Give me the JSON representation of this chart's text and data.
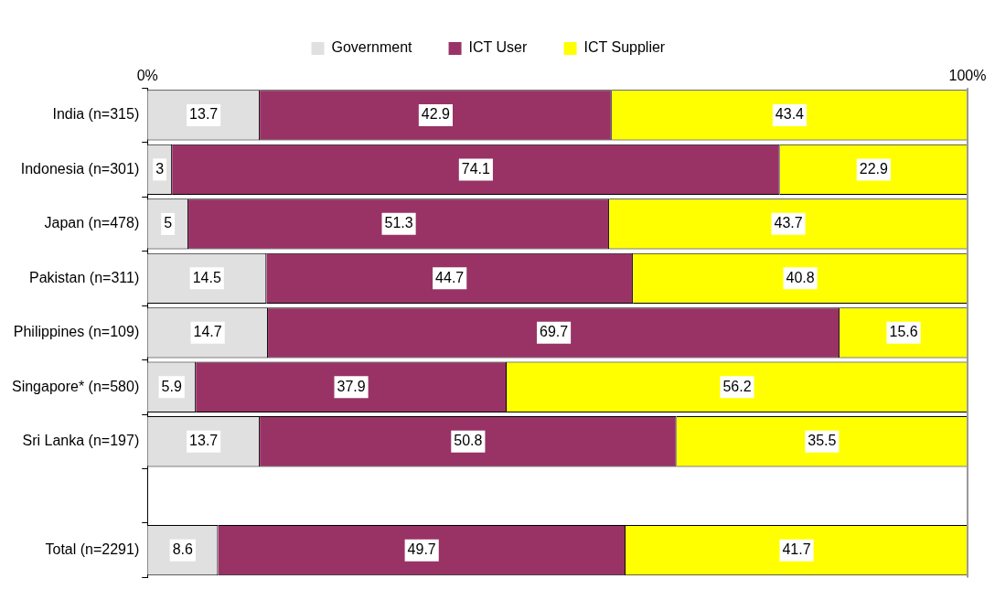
{
  "chart_data": {
    "type": "bar",
    "orientation": "horizontal",
    "stacked": true,
    "data_labels": true,
    "legend": "top",
    "grid": false,
    "categories": [
      "India (n=315)",
      "Indonesia (n=301)",
      "Japan (n=478)",
      "Pakistan (n=311)",
      "Philippines (n=109)",
      "Singapore* (n=580)",
      "Sri Lanka (n=197)",
      null,
      "Total (n=2291)"
    ],
    "xlim": [
      0,
      100
    ],
    "xticks": [
      {
        "value": 0,
        "label": "0%"
      },
      {
        "value": 100,
        "label": "100%"
      }
    ],
    "series": [
      {
        "name": "Government",
        "color": "#e0e0e0",
        "values": [
          13.7,
          3,
          5,
          14.5,
          14.7,
          5.9,
          13.7,
          null,
          8.6
        ]
      },
      {
        "name": "ICT User",
        "color": "#993366",
        "values": [
          42.9,
          74.1,
          51.3,
          44.7,
          69.7,
          37.9,
          50.8,
          null,
          49.7
        ]
      },
      {
        "name": "ICT Supplier",
        "color": "#ffff00",
        "values": [
          43.4,
          22.9,
          43.7,
          40.8,
          15.6,
          56.2,
          35.5,
          null,
          41.7
        ]
      }
    ]
  }
}
